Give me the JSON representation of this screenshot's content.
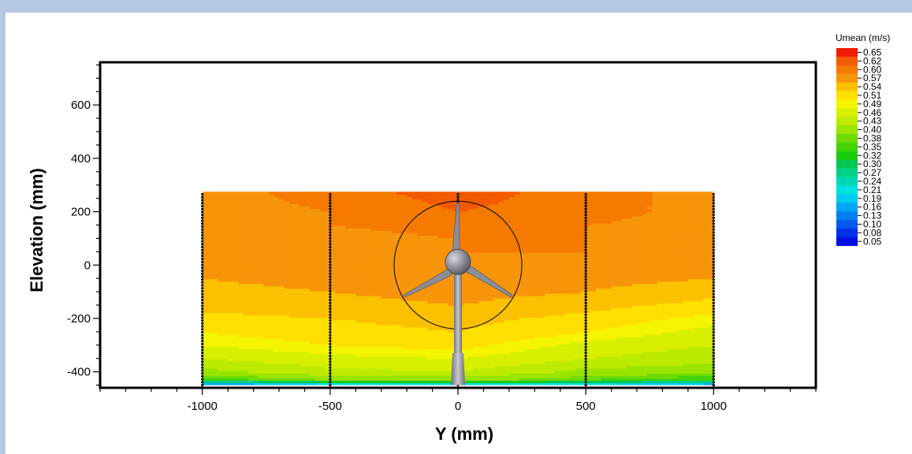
{
  "chart_data": {
    "type": "heatmap",
    "xlabel": "Y (mm)",
    "ylabel": "Elevation (mm)",
    "xlim": [
      -1400,
      1400
    ],
    "ylim": [
      -460,
      760
    ],
    "xticks": [
      -1000,
      -500,
      0,
      500,
      1000
    ],
    "xtick_labels": [
      "-1000",
      "-500",
      "0",
      "500",
      "1000"
    ],
    "yticks": [
      -400,
      -200,
      0,
      200,
      400,
      600
    ],
    "ytick_labels": [
      "-400",
      "-200",
      "0",
      "200",
      "400",
      "600"
    ],
    "field_extent": {
      "x": [
        -1000,
        1000
      ],
      "y": [
        -450,
        275
      ]
    },
    "measurement_profiles_x": [
      -1000,
      -500,
      0,
      500,
      1000
    ],
    "rotor": {
      "center": [
        0,
        0
      ],
      "radius": 250
    },
    "colorbar": {
      "title": "Umean (m/s)",
      "levels": [
        0.65,
        0.62,
        0.6,
        0.57,
        0.54,
        0.51,
        0.49,
        0.46,
        0.43,
        0.4,
        0.38,
        0.35,
        0.32,
        0.3,
        0.27,
        0.24,
        0.21,
        0.19,
        0.16,
        0.13,
        0.1,
        0.08,
        0.05
      ],
      "level_labels": [
        "0.65",
        "0.62",
        "0.60",
        "0.57",
        "0.54",
        "0.51",
        "0.49",
        "0.46",
        "0.43",
        "0.40",
        "0.38",
        "0.35",
        "0.32",
        "0.30",
        "0.27",
        "0.24",
        "0.21",
        "0.19",
        "0.16",
        "0.13",
        "0.10",
        "0.08",
        "0.05"
      ],
      "colors": [
        "#ee1c00",
        "#f45a00",
        "#f57a00",
        "#f7950a",
        "#fbc000",
        "#ffe000",
        "#f5f500",
        "#d8f000",
        "#bcea00",
        "#99e400",
        "#6fdc00",
        "#43d400",
        "#1ccc10",
        "#00c850",
        "#00d088",
        "#00d8b4",
        "#00e0dc",
        "#00ccf0",
        "#00a8f4",
        "#0080f0",
        "#0058ec",
        "#0030e8",
        "#0010e0"
      ]
    },
    "velocity_field": {
      "x": [
        -1000,
        -500,
        0,
        500,
        1000
      ],
      "y": [
        -450,
        -430,
        -400,
        -350,
        -300,
        -250,
        -200,
        -150,
        -100,
        -50,
        0,
        50,
        100,
        150,
        200,
        275
      ],
      "values": [
        [
          0.12,
          0.16,
          0.18,
          0.17,
          0.14
        ],
        [
          0.36,
          0.4,
          0.41,
          0.38,
          0.35
        ],
        [
          0.42,
          0.45,
          0.46,
          0.42,
          0.41
        ],
        [
          0.46,
          0.48,
          0.49,
          0.46,
          0.44
        ],
        [
          0.49,
          0.51,
          0.52,
          0.48,
          0.46
        ],
        [
          0.51,
          0.53,
          0.54,
          0.51,
          0.48
        ],
        [
          0.53,
          0.54,
          0.55,
          0.53,
          0.5
        ],
        [
          0.55,
          0.56,
          0.57,
          0.55,
          0.53
        ],
        [
          0.56,
          0.57,
          0.58,
          0.57,
          0.55
        ],
        [
          0.57,
          0.58,
          0.59,
          0.58,
          0.57
        ],
        [
          0.57,
          0.59,
          0.595,
          0.59,
          0.58
        ],
        [
          0.58,
          0.59,
          0.6,
          0.6,
          0.59
        ],
        [
          0.58,
          0.59,
          0.6,
          0.6,
          0.59
        ],
        [
          0.59,
          0.6,
          0.61,
          0.6,
          0.59
        ],
        [
          0.59,
          0.6,
          0.62,
          0.61,
          0.59
        ],
        [
          0.59,
          0.61,
          0.63,
          0.61,
          0.59
        ]
      ]
    }
  }
}
